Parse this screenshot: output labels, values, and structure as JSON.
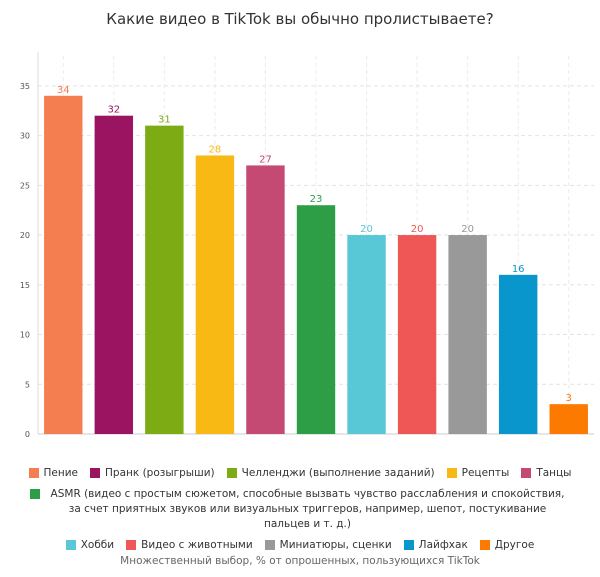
{
  "title": "Какие видео в TikTok вы обычно пролистываете?",
  "footer": "Множественный выбор, % от опрошенных, пользующихся TikTok",
  "chart_data": {
    "type": "bar",
    "title": "Какие видео в TikTok вы обычно пролистываете?",
    "xlabel": "",
    "ylabel": "",
    "ylim": [
      0,
      38
    ],
    "yticks": [
      0,
      5,
      10,
      15,
      20,
      25,
      30,
      35
    ],
    "grid": true,
    "legend_position": "bottom",
    "categories": [
      "Пение",
      "Пранк (розыгрыши)",
      "Челленджи (выполнение заданий)",
      "Рецепты",
      "Танцы",
      "ASMR (видео с простым сюжетом, способные вызвать чувство расслабления и спокойствия, за счет приятных звуков или визуальных триггеров, например, шепот, постукивание пальцев и т. д.)",
      "Хобби",
      "Видео с животными",
      "Миниатюры, сценки",
      "Лайфхак",
      "Другое"
    ],
    "values": [
      34,
      32,
      31,
      28,
      27,
      23,
      20,
      20,
      20,
      16,
      3
    ],
    "colors": [
      "#f47e4f",
      "#9b1462",
      "#7dab14",
      "#f8b915",
      "#c44a73",
      "#2e9e46",
      "#58c8d6",
      "#ee5756",
      "#999999",
      "#0896cd",
      "#fd7a00"
    ]
  }
}
